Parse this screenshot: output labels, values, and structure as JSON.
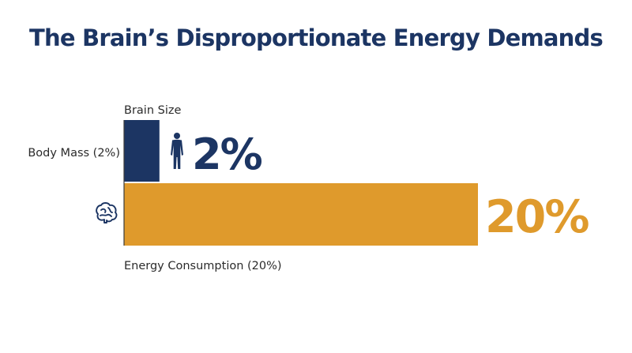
{
  "chart_data": {
    "type": "bar",
    "orientation": "horizontal",
    "title": "The Brain’s Disproportionate Energy Demands",
    "xlabel": "",
    "ylabel": "",
    "xlim": [
      0,
      20
    ],
    "grid": false,
    "legend": "none",
    "bars": [
      {
        "top_label": "Brain Size",
        "side_label": "Body Mass (2%)",
        "value": 2,
        "value_label": "2%",
        "icon": "human-figure-icon",
        "color": "#1c3563"
      },
      {
        "side_label": "",
        "bottom_label": "Energy Consumption (20%)",
        "value": 20,
        "value_label": "20%",
        "icon": "brain-icon",
        "color": "#df9a2c"
      }
    ]
  },
  "colors": {
    "title": "#1c3563",
    "label_text": "#2b2b2b",
    "axis": "#3a3a3a",
    "brain_icon": "#1c3563"
  }
}
